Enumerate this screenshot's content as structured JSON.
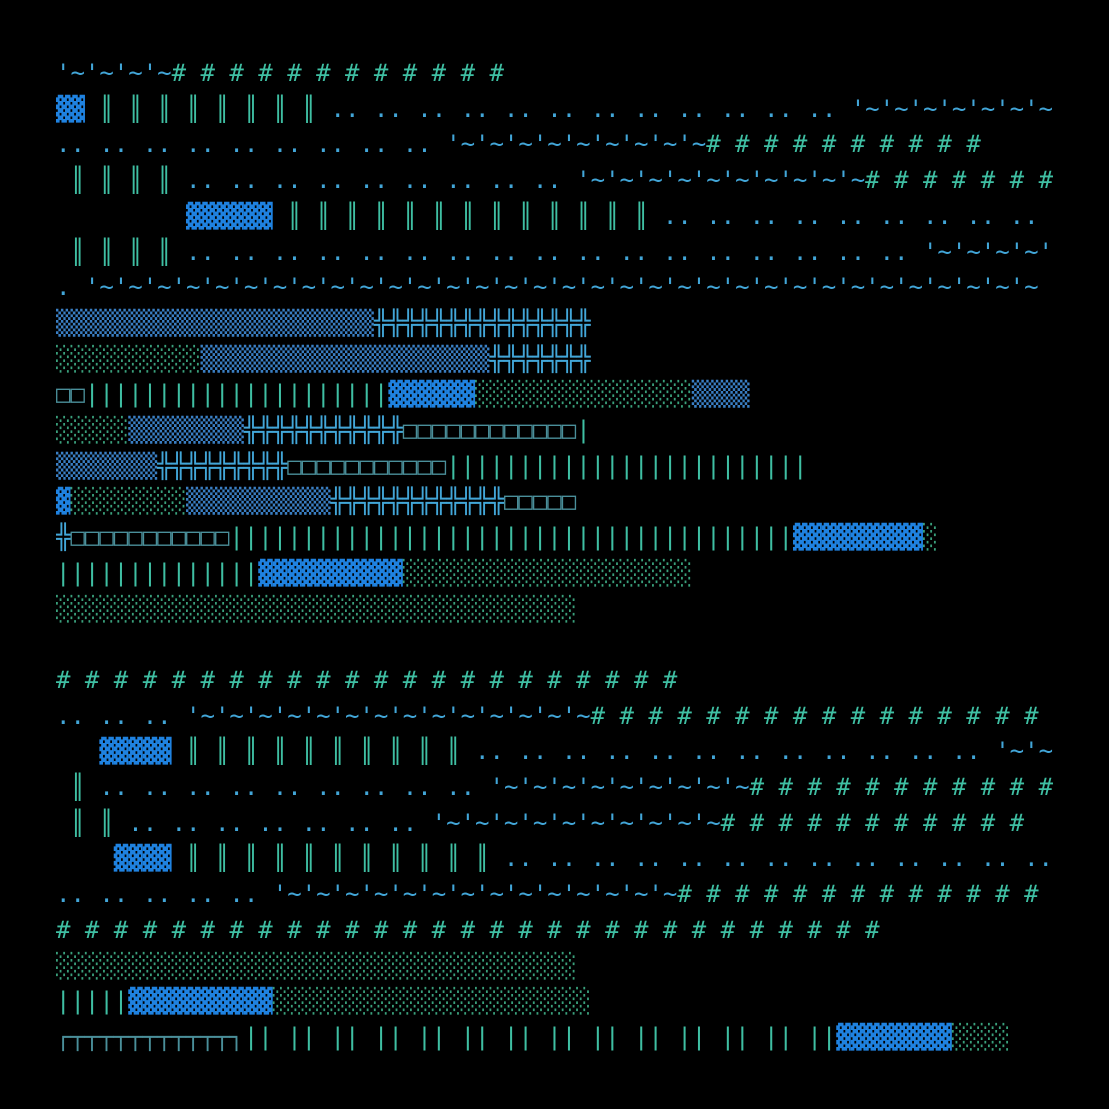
{
  "artwork": {
    "palette": {
      "background": "#000000",
      "blue": "#1f82e0",
      "blue_dim": "#3a7fc4",
      "teal": "#3fbfa3",
      "sky": "#42a6d8",
      "slate": "#4a8f9a",
      "green_dot": "#3aa07c"
    },
    "rows": [
      {
        "segments": [
          {
            "text": "'~'~'~'~",
            "color": "sky"
          },
          {
            "text": "# # # # # # # # # # # #",
            "color": "teal"
          },
          {
            "text": "                                         ",
            "color": "teal"
          },
          {
            "text": "▓▓▓▓",
            "color": "blue"
          }
        ]
      },
      {
        "segments": [
          {
            "text": "▓▓",
            "color": "blue"
          },
          {
            "text": " ║ ║ ║ ║ ║ ║ ║ ║",
            "color": "teal"
          },
          {
            "text": " .. .. .. .. .. .. .. .. .. .. .. ..",
            "color": "sky"
          },
          {
            "text": " '~'~'~'~'~'~'~'~'~'~'~'~'~",
            "color": "sky"
          },
          {
            "text": "# # #",
            "color": "teal"
          }
        ]
      },
      {
        "segments": [
          {
            "text": ".. .. .. .. .. .. .. .. ..",
            "color": "sky"
          },
          {
            "text": " '~'~'~'~'~'~'~'~'~",
            "color": "sky"
          },
          {
            "text": "# # # # # # # # # #",
            "color": "teal"
          }
        ]
      },
      {
        "segments": [
          {
            "text": " ║ ║ ║ ║",
            "color": "teal"
          },
          {
            "text": " .. .. .. .. .. .. .. .. ..",
            "color": "sky"
          },
          {
            "text": " '~'~'~'~'~'~'~'~'~'~",
            "color": "sky"
          },
          {
            "text": "# # # # # # # # # # # #",
            "color": "teal"
          }
        ]
      },
      {
        "segments": [
          {
            "text": "         ",
            "color": "teal"
          },
          {
            "text": "▓▓▓▓▓▓",
            "color": "blue"
          },
          {
            "text": " ║ ║ ║ ║ ║ ║ ║ ║ ║ ║ ║ ║ ║",
            "color": "teal"
          },
          {
            "text": " .. .. .. .. .. .. .. .. ..",
            "color": "sky"
          }
        ]
      },
      {
        "segments": [
          {
            "text": " ║ ║ ║ ║",
            "color": "teal"
          },
          {
            "text": " .. .. .. .. .. .. .. .. .. .. .. .. .. .. .. .. ..",
            "color": "sky"
          },
          {
            "text": " '~'~'~'~'~'~'~'~'~'~'~'~'~'~'~",
            "color": "sky"
          }
        ]
      },
      {
        "segments": [
          {
            "text": ". '~'~'~'~'~'~'~'~'~'~'~'~'~'~'~'~'~'~'~'~'~'~'~'~'~'~'~'~'~'~'~'~'~",
            "color": "sky"
          }
        ]
      },
      {
        "segments": [
          {
            "text": "▒▒▒▒▒▒▒▒▒▒▒▒▒▒▒▒▒▒▒▒▒▒",
            "color": "blue_dim"
          },
          {
            "text": "╬╬╬╬╬╬╬╬╬╬╬╬╬╬╬",
            "color": "sky"
          }
        ]
      },
      {
        "segments": [
          {
            "text": "░░░░░░░░░░",
            "color": "green_dot"
          },
          {
            "text": "▒▒▒▒▒▒▒▒▒▒▒▒▒▒▒▒▒▒▒▒",
            "color": "blue_dim"
          },
          {
            "text": "╬╬╬╬╬╬╬",
            "color": "sky"
          }
        ]
      },
      {
        "segments": [
          {
            "text": "□□",
            "color": "slate"
          },
          {
            "text": "|||||||||||||||||||||",
            "color": "teal"
          },
          {
            "text": "▓▓▓▓▓▓",
            "color": "blue"
          },
          {
            "text": "░░░░░░░░░░░░░░░",
            "color": "green_dot"
          },
          {
            "text": "▒▒▒▒",
            "color": "blue_dim"
          }
        ]
      },
      {
        "segments": [
          {
            "text": "░░░░░",
            "color": "green_dot"
          },
          {
            "text": "▒▒▒▒▒▒▒▒",
            "color": "blue_dim"
          },
          {
            "text": "╬╬╬╬╬╬╬╬╬╬╬",
            "color": "sky"
          },
          {
            "text": "□□□□□□□□□□□□",
            "color": "slate"
          },
          {
            "text": "|",
            "color": "teal"
          }
        ]
      },
      {
        "segments": [
          {
            "text": "▒▒▒▒▒▒▒",
            "color": "blue_dim"
          },
          {
            "text": "╬╬╬╬╬╬╬╬╬",
            "color": "sky"
          },
          {
            "text": "□□□□□□□□□□□",
            "color": "slate"
          },
          {
            "text": "|||||||||||||||||||||||||",
            "color": "teal"
          }
        ]
      },
      {
        "segments": [
          {
            "text": "▓",
            "color": "blue"
          },
          {
            "text": "░░░░░░░░",
            "color": "green_dot"
          },
          {
            "text": "▒▒▒▒▒▒▒▒▒▒",
            "color": "blue_dim"
          },
          {
            "text": "╬╬╬╬╬╬╬╬╬╬╬╬",
            "color": "sky"
          },
          {
            "text": "□□□□□",
            "color": "slate"
          }
        ]
      },
      {
        "segments": [
          {
            "text": "╬",
            "color": "sky"
          },
          {
            "text": "□□□□□□□□□□□",
            "color": "slate"
          },
          {
            "text": "|||||||||||||||||||||||||||||||||||||||",
            "color": "teal"
          },
          {
            "text": "▓▓▓▓▓▓▓▓▓",
            "color": "blue"
          },
          {
            "text": "░",
            "color": "green_dot"
          }
        ]
      },
      {
        "segments": [
          {
            "text": "||||||||||||||",
            "color": "teal"
          },
          {
            "text": "▓▓▓▓▓▓▓▓▓▓",
            "color": "blue"
          },
          {
            "text": "░░░░░░░░░░░░░░░░░░░░",
            "color": "green_dot"
          }
        ]
      },
      {
        "segments": [
          {
            "text": "░░░░░░░░░░░░░░░░░░░░░░░░░░░░░░░░░░░░",
            "color": "green_dot"
          }
        ]
      },
      {
        "segments": [
          {
            "text": "",
            "color": "teal"
          }
        ]
      },
      {
        "segments": [
          {
            "text": "# # # # # # # # # # # # # # # # # # # # # #",
            "color": "teal"
          }
        ]
      },
      {
        "segments": [
          {
            "text": ".. .. ..",
            "color": "sky"
          },
          {
            "text": " '~'~'~'~'~'~'~'~'~'~'~'~'~'~",
            "color": "sky"
          },
          {
            "text": "# # # # # # # # # # # # # # # # # # #",
            "color": "teal"
          }
        ]
      },
      {
        "segments": [
          {
            "text": "   ",
            "color": "teal"
          },
          {
            "text": "▓▓▓▓▓",
            "color": "blue"
          },
          {
            "text": " ║ ║ ║ ║ ║ ║ ║ ║ ║ ║",
            "color": "teal"
          },
          {
            "text": " .. .. .. .. .. .. .. .. .. .. .. ..",
            "color": "sky"
          },
          {
            "text": " '~'~'~'~'~'~'~'~",
            "color": "sky"
          }
        ]
      },
      {
        "segments": [
          {
            "text": " ║",
            "color": "teal"
          },
          {
            "text": " .. .. .. .. .. .. .. .. ..",
            "color": "sky"
          },
          {
            "text": " '~'~'~'~'~'~'~'~'~",
            "color": "sky"
          },
          {
            "text": "# # # # # # # # # # #",
            "color": "teal"
          }
        ]
      },
      {
        "segments": [
          {
            "text": " ║ ║",
            "color": "teal"
          },
          {
            "text": " .. .. .. .. .. .. ..",
            "color": "sky"
          },
          {
            "text": " '~'~'~'~'~'~'~'~'~'~",
            "color": "sky"
          },
          {
            "text": "# # # # # # # # # # #",
            "color": "teal"
          }
        ]
      },
      {
        "segments": [
          {
            "text": "    ",
            "color": "teal"
          },
          {
            "text": "▓▓▓▓",
            "color": "blue"
          },
          {
            "text": " ║ ║ ║ ║ ║ ║ ║ ║ ║ ║ ║",
            "color": "teal"
          },
          {
            "text": " .. .. .. .. .. .. .. .. .. .. .. .. ..",
            "color": "sky"
          },
          {
            "text": " '~'~'~'~'~'~",
            "color": "sky"
          }
        ]
      },
      {
        "segments": [
          {
            "text": ".. .. .. .. ..",
            "color": "sky"
          },
          {
            "text": " '~'~'~'~'~'~'~'~'~'~'~'~'~'~",
            "color": "sky"
          },
          {
            "text": "# # # # # # # # # # # # # # # # # #",
            "color": "teal"
          }
        ]
      },
      {
        "segments": [
          {
            "text": "# # # # # # # # # # # # # # # # # # # # # # # # # # # # #",
            "color": "teal"
          }
        ]
      },
      {
        "segments": [
          {
            "text": "░░░░░░░░░░░░░░░░░░░░░░░░░░░░░░░░░░░░",
            "color": "green_dot"
          }
        ]
      },
      {
        "segments": [
          {
            "text": "|||||",
            "color": "teal"
          },
          {
            "text": "▓▓▓▓▓▓▓▓▓▓",
            "color": "blue"
          },
          {
            "text": "░░░░░░░░░░░░░░░░░░░░░░",
            "color": "green_dot"
          }
        ]
      },
      {
        "segments": [
          {
            "text": "┌┬┬┬┬┬┬┬┬┬┬┬┐",
            "color": "slate"
          },
          {
            "text": "|| || || || || || || || || || || || || ||",
            "color": "teal"
          },
          {
            "text": "▓▓▓▓▓▓▓▓",
            "color": "blue"
          },
          {
            "text": "░░░░",
            "color": "green_dot"
          }
        ]
      }
    ]
  }
}
